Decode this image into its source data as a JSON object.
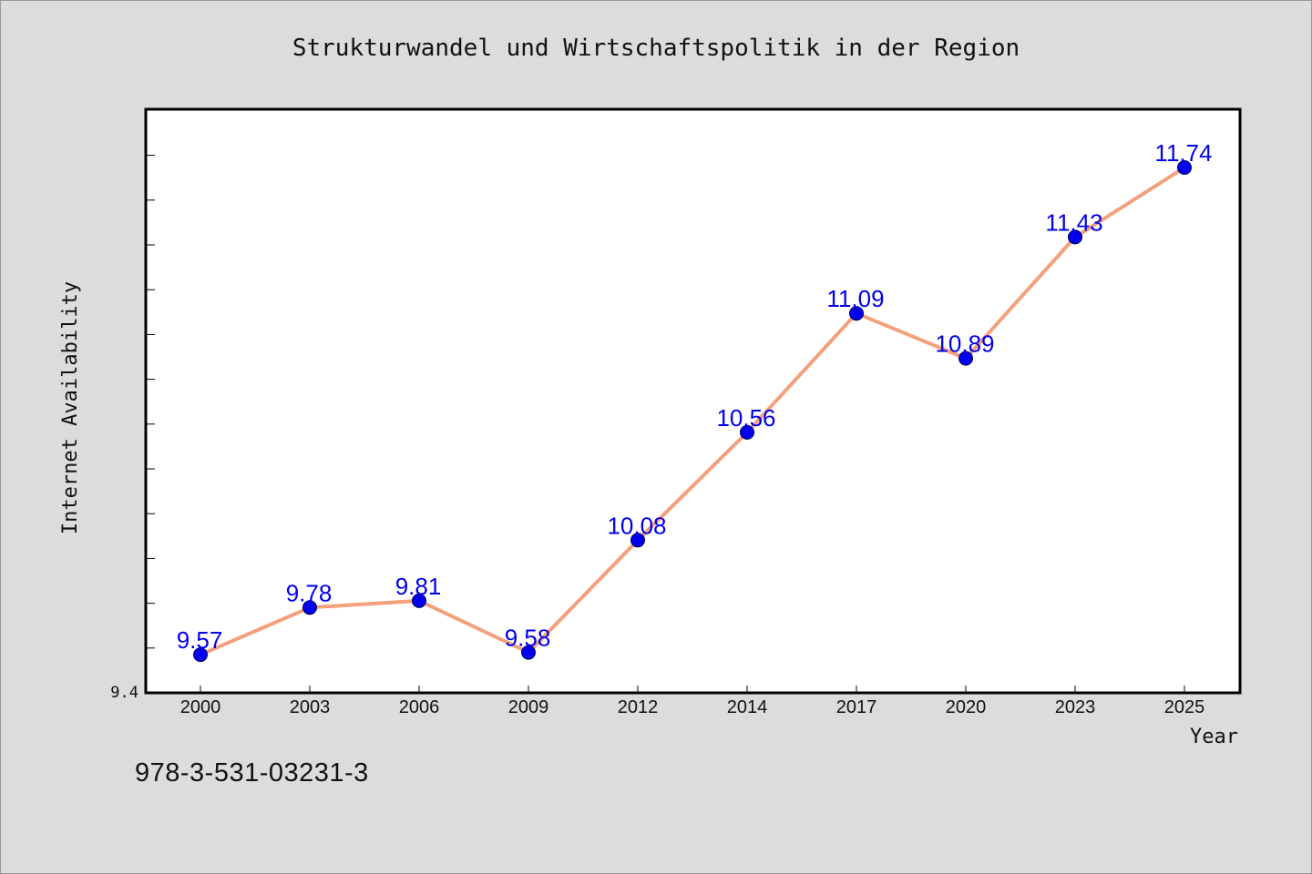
{
  "chart_data": {
    "type": "line",
    "title": "Strukturwandel und Wirtschaftspolitik in der Region",
    "xlabel": "Year",
    "ylabel": "Internet Availability",
    "categories": [
      "2000",
      "2003",
      "2006",
      "2009",
      "2012",
      "2014",
      "2017",
      "2020",
      "2023",
      "2025"
    ],
    "series": [
      {
        "values": [
          9.57,
          9.78,
          9.81,
          9.58,
          10.08,
          10.56,
          11.09,
          10.89,
          11.43,
          11.74
        ]
      }
    ],
    "data_labels": [
      "9.57",
      "9.78",
      "9.81",
      "9.58",
      "10.08",
      "10.56",
      "11.09",
      "10.89",
      "11.43",
      "11.74"
    ],
    "ylim": [
      9.4,
      12.0
    ],
    "y_tick_label": "9.4",
    "grid": false,
    "legend": "none",
    "colors": {
      "line": "#f4a07c",
      "marker": "#0000ee",
      "marker_edge": "#000055",
      "data_label": "#0000ee",
      "plot_background": "#ffffff",
      "figure_background": "#dcdcdc"
    }
  },
  "footer": {
    "isbn": "978-3-531-03231-3"
  }
}
